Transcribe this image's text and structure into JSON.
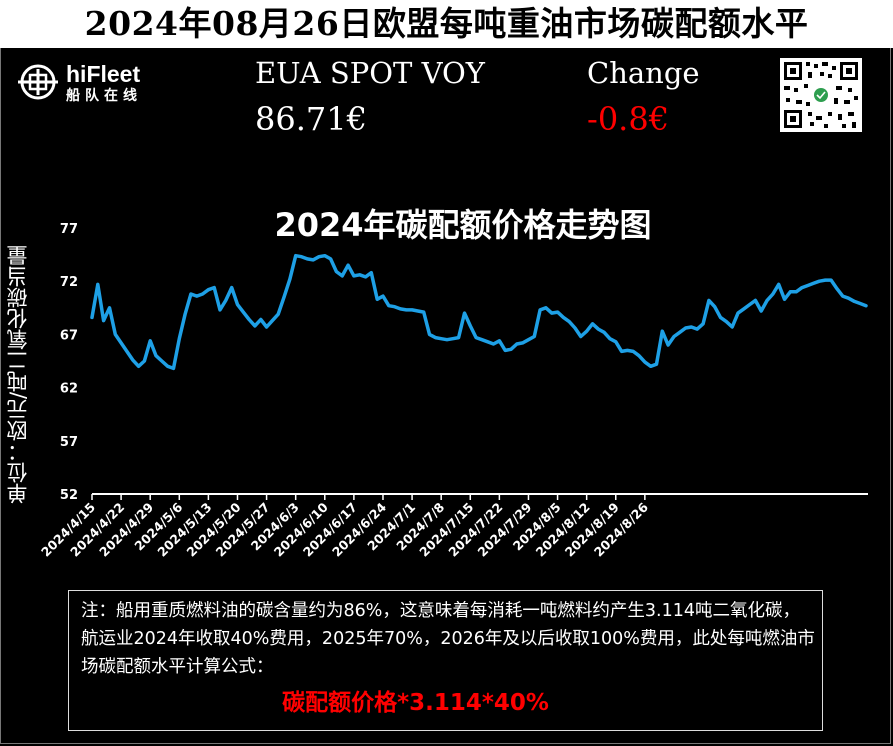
{
  "header": {
    "title": "2024年08月26日欧盟每吨重油市场碳配额水平"
  },
  "logo": {
    "name": "hiFleet",
    "subtitle": "船队在线"
  },
  "price": {
    "label": "EUA SPOT VOY",
    "value": "86.71€"
  },
  "change": {
    "label": "Change",
    "value": "-0.8€",
    "color": "#ff0000"
  },
  "note": {
    "text": "注：船用重质燃料油的碳含量约为86%，这意味着每消耗一吨燃料约产生3.114吨二氧化碳，航运业2024年收取40%费用，2025年70%，2026年及以后收取100%费用，此处每吨燃油市场碳配额水平计算公式：",
    "formula": "碳配额价格*3.114*40%",
    "formula_color": "#ff0000"
  },
  "chart_data": {
    "type": "line",
    "title": "2024年碳配额价格走势图",
    "ylabel": "单位：欧元/吨二氧化碳当量",
    "xlabel": "",
    "ylim": [
      52,
      77
    ],
    "yticks": [
      52,
      57,
      62,
      67,
      72,
      77
    ],
    "grid": false,
    "line_color": "#1ea0e6",
    "x_ticks": [
      "2024/4/15",
      "2024/4/22",
      "2024/4/29",
      "2024/5/6",
      "2024/5/13",
      "2024/5/20",
      "2024/5/27",
      "2024/6/3",
      "2024/6/10",
      "2024/6/17",
      "2024/6/24",
      "2024/7/1",
      "2024/7/8",
      "2024/7/15",
      "2024/7/22",
      "2024/7/29",
      "2024/8/5",
      "2024/8/12",
      "2024/8/19",
      "2024/8/26"
    ],
    "x_start": "2024/4/15",
    "x": [
      0,
      1,
      2,
      3,
      4,
      5,
      6,
      7,
      8,
      9,
      10,
      11,
      12,
      13,
      14,
      15,
      16,
      17,
      18,
      19,
      20,
      21,
      22,
      23,
      24,
      25,
      26,
      27,
      28,
      29,
      30,
      31,
      32,
      33,
      34,
      35,
      36,
      37,
      38,
      39,
      40,
      41,
      42,
      43,
      44,
      45,
      46,
      47,
      48,
      49,
      50,
      51,
      52,
      53,
      54,
      55,
      56,
      57,
      58,
      59,
      60,
      61,
      62,
      63,
      64,
      65,
      66,
      67,
      68,
      69,
      70,
      71,
      72,
      73,
      74,
      75,
      76,
      77,
      78,
      79,
      80,
      81,
      82,
      83,
      84,
      85,
      86,
      87,
      88,
      89,
      90,
      91,
      92,
      93,
      94,
      95,
      96,
      97,
      98,
      99,
      100,
      101,
      102,
      103,
      104,
      105,
      106,
      107,
      108,
      109,
      110,
      111,
      112,
      113,
      114,
      115,
      116,
      117,
      118,
      119,
      120,
      121,
      122,
      123,
      124,
      125,
      126,
      127,
      128,
      129,
      130,
      131,
      132,
      133
    ],
    "values": [
      68.6,
      71.7,
      68.3,
      69.5,
      67.0,
      66.2,
      65.4,
      64.6,
      64.0,
      64.5,
      66.4,
      65.0,
      64.5,
      64.0,
      63.8,
      66.6,
      68.9,
      70.8,
      70.6,
      70.8,
      71.2,
      71.4,
      69.3,
      70.2,
      71.4,
      69.8,
      69.1,
      68.4,
      67.8,
      68.4,
      67.7,
      68.3,
      68.9,
      70.5,
      72.2,
      74.4,
      74.3,
      74.1,
      74.0,
      74.3,
      74.4,
      74.1,
      72.9,
      72.5,
      73.5,
      72.5,
      72.6,
      72.4,
      72.8,
      70.3,
      70.6,
      69.7,
      69.6,
      69.4,
      69.3,
      69.3,
      69.2,
      69.1,
      67.0,
      66.7,
      66.6,
      66.5,
      66.6,
      66.7,
      69.0,
      67.8,
      66.7,
      66.5,
      66.3,
      66.1,
      66.4,
      65.5,
      65.6,
      66.1,
      66.2,
      66.5,
      66.8,
      69.3,
      69.5,
      69.0,
      69.1,
      68.6,
      68.2,
      67.6,
      66.8,
      67.3,
      68.0,
      67.5,
      67.2,
      66.6,
      66.3,
      65.4,
      65.5,
      65.4,
      65.0,
      64.4,
      64.0,
      64.2,
      67.3,
      66.0,
      66.8,
      67.2,
      67.6,
      67.7,
      67.5,
      68.0,
      70.2,
      69.6,
      68.6,
      68.2,
      67.7,
      69.0,
      69.4,
      69.8,
      70.2,
      69.2,
      70.2,
      70.8,
      71.7,
      70.3,
      71.0,
      71.0,
      71.4,
      71.6,
      71.8,
      72.0,
      72.1,
      72.1,
      71.3,
      70.6,
      70.4,
      70.1,
      69.9,
      69.7
    ]
  }
}
